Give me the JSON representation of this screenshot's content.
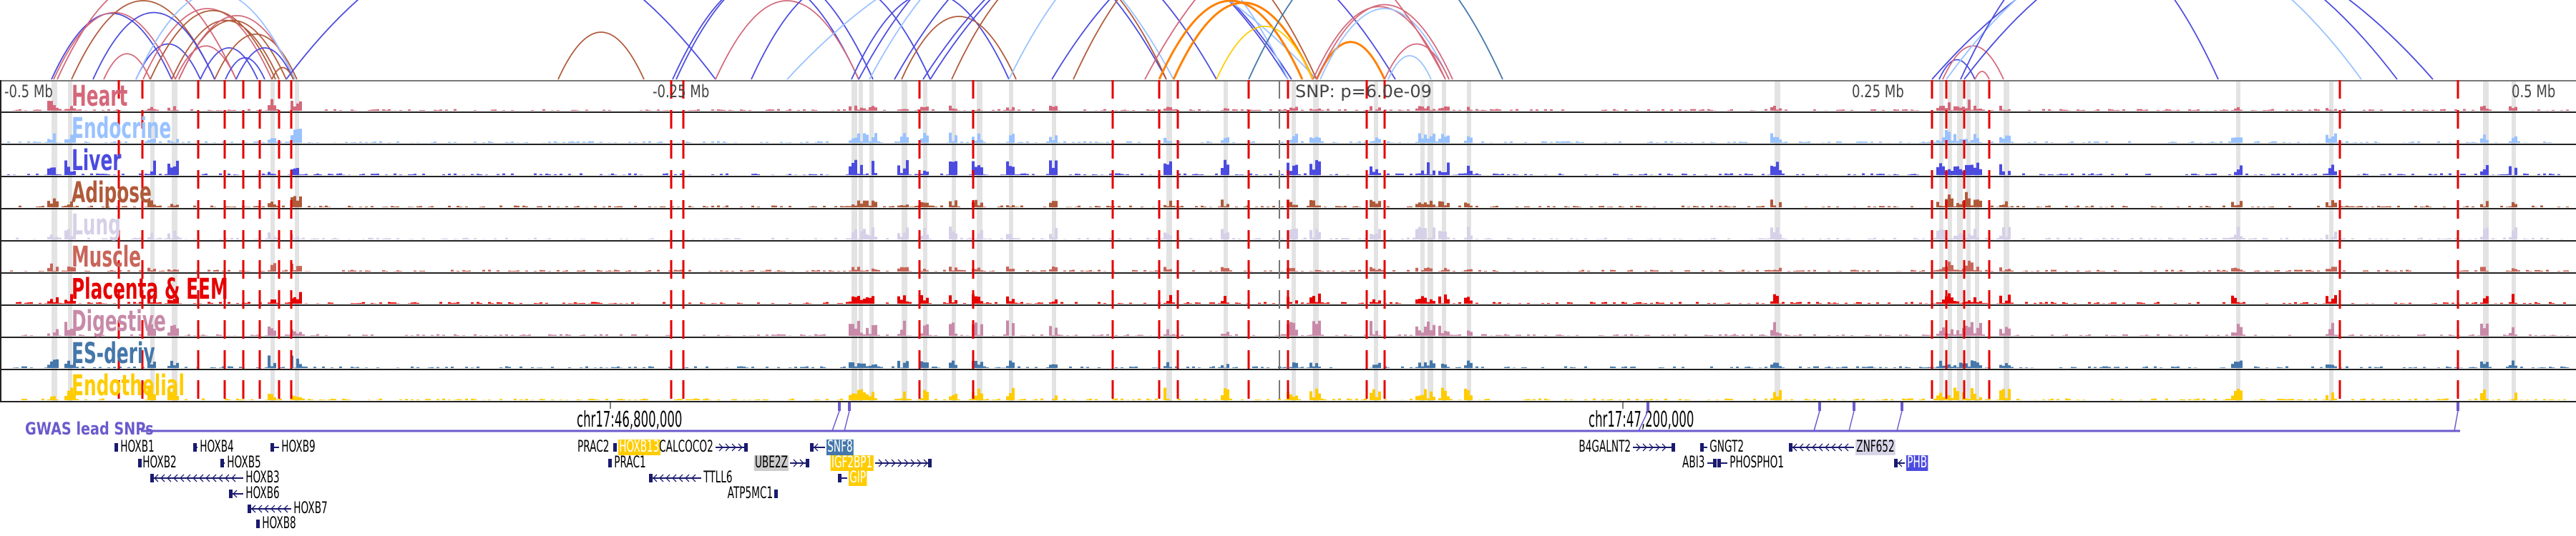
{
  "tracks": [
    {
      "label": "Heart",
      "color": "#d4687a"
    },
    {
      "label": "Endocrine",
      "color": "#99c2ff"
    },
    {
      "label": "Liver",
      "color": "#4b4be0"
    },
    {
      "label": "Adipose",
      "color": "#b05a3a"
    },
    {
      "label": "Lung",
      "color": "#d6d0e8"
    },
    {
      "label": "Muscle",
      "color": "#c8665a"
    },
    {
      "label": "Placenta & EEM",
      "color": "#e60000"
    },
    {
      "label": "Digestive",
      "color": "#c88aa8"
    },
    {
      "label": "ES-deriv",
      "color": "#4477aa"
    },
    {
      "label": "Endothelial",
      "color": "#ffcc00"
    }
  ],
  "axis": {
    "left_far": "-0.5 Mb",
    "left_near": "-0.25 Mb",
    "snp": "SNP: p=6.0e-09",
    "right_near": "0.25 Mb",
    "right_far": "0.5 Mb"
  },
  "coordinates": [
    "chr17:46,800,000",
    "chr17:47,200,000"
  ],
  "gwas_label": "GWAS lead SNPs",
  "colors": {
    "snp_line": "#e60000",
    "gwas": "#6a5acd",
    "gene": "#1a1a6e",
    "highlight_band": "#e3e3e3"
  },
  "genes": [
    {
      "name": "HOXB1",
      "strand": "+"
    },
    {
      "name": "HOXB2",
      "strand": "-"
    },
    {
      "name": "HOXB3",
      "strand": "-"
    },
    {
      "name": "HOXB4",
      "strand": "-"
    },
    {
      "name": "HOXB5",
      "strand": "-"
    },
    {
      "name": "HOXB6",
      "strand": "-"
    },
    {
      "name": "HOXB7",
      "strand": "-"
    },
    {
      "name": "HOXB8",
      "strand": "-"
    },
    {
      "name": "HOXB9",
      "strand": "-"
    },
    {
      "name": "PRAC2",
      "strand": "+"
    },
    {
      "name": "PRAC1",
      "strand": "+"
    },
    {
      "name": "HOXB13",
      "strand": "-",
      "highlight": "#ffcc00",
      "text": "#ffffff"
    },
    {
      "name": "CALCOCO2",
      "strand": "+"
    },
    {
      "name": "TTLL6",
      "strand": "-"
    },
    {
      "name": "ATP5MC1",
      "strand": "+"
    },
    {
      "name": "UBE2Z",
      "strand": "+",
      "highlight": "#cccccc",
      "text": "#000000"
    },
    {
      "name": "SNF8",
      "strand": "-",
      "highlight": "#4477aa",
      "text": "#ffffff"
    },
    {
      "name": "IGF2BP1",
      "strand": "+",
      "highlight": "#ffcc00",
      "text": "#ffffff"
    },
    {
      "name": "GIP",
      "strand": "-",
      "highlight": "#ffcc00",
      "text": "#ffffff"
    },
    {
      "name": "B4GALNT2",
      "strand": "+"
    },
    {
      "name": "GNGT2",
      "strand": "-"
    },
    {
      "name": "ABI3",
      "strand": "+"
    },
    {
      "name": "PHOSPHO1",
      "strand": "-"
    },
    {
      "name": "ZNF652",
      "strand": "-",
      "highlight": "#d8d4e8",
      "text": "#000000"
    },
    {
      "name": "PHB",
      "strand": "-",
      "highlight": "#4b4be0",
      "text": "#ffffff"
    }
  ]
}
